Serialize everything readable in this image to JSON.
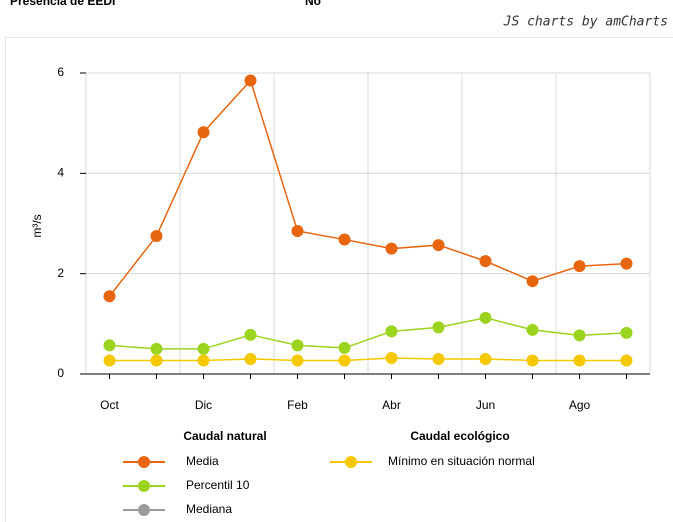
{
  "header": {
    "label": "Presencia de EEDI",
    "value": "No"
  },
  "credit": "JS charts by amCharts",
  "chart_data": {
    "type": "line",
    "y_label": "m³/s",
    "categories": [
      "Oct",
      null,
      "Dic",
      null,
      "Feb",
      null,
      "Abr",
      null,
      "Jun",
      null,
      "Ago",
      null
    ],
    "ylim": [
      0,
      6
    ],
    "yticks": [
      0,
      2,
      4,
      6
    ],
    "grid": true,
    "series": [
      {
        "name": "Media",
        "group": "Caudal natural",
        "color": "#e8650f",
        "values": [
          1.55,
          2.75,
          4.82,
          5.85,
          2.85,
          2.68,
          2.5,
          2.57,
          2.25,
          1.85,
          2.15,
          2.2
        ]
      },
      {
        "name": "Percentil 10",
        "group": "Caudal natural",
        "color": "#9bd41e",
        "values": [
          0.57,
          0.5,
          0.5,
          0.78,
          0.57,
          0.52,
          0.85,
          0.93,
          1.12,
          0.88,
          0.77,
          0.82
        ]
      },
      {
        "name": "Mediana",
        "group": "Caudal natural",
        "color": "#9a9a9a",
        "values": [
          null,
          null,
          null,
          null,
          null,
          null,
          null,
          null,
          null,
          null,
          null,
          null
        ]
      },
      {
        "name": "Mínimo en situación normal",
        "group": "Caudal ecológico",
        "color": "#f5c800",
        "values": [
          0.27,
          0.27,
          0.27,
          0.3,
          0.27,
          0.27,
          0.32,
          0.3,
          0.3,
          0.27,
          0.27,
          0.27
        ]
      }
    ]
  }
}
